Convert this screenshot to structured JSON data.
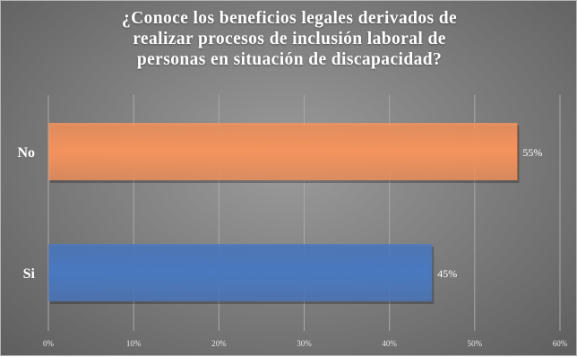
{
  "chart_data": {
    "type": "bar",
    "orientation": "horizontal",
    "title_lines": [
      "¿Conoce los beneficios legales derivados de",
      "realizar procesos de inclusión laboral de",
      "personas en situación de discapacidad?"
    ],
    "categories": [
      "No",
      "Si"
    ],
    "values": [
      55,
      45
    ],
    "data_labels": [
      "55%",
      "45%"
    ],
    "colors": [
      "#f4935d",
      "#4a79c0"
    ],
    "x_ticks": [
      "0%",
      "10%",
      "20%",
      "30%",
      "40%",
      "50%",
      "60%"
    ],
    "xlim": [
      0,
      60
    ],
    "grid": true,
    "legend": "none"
  }
}
